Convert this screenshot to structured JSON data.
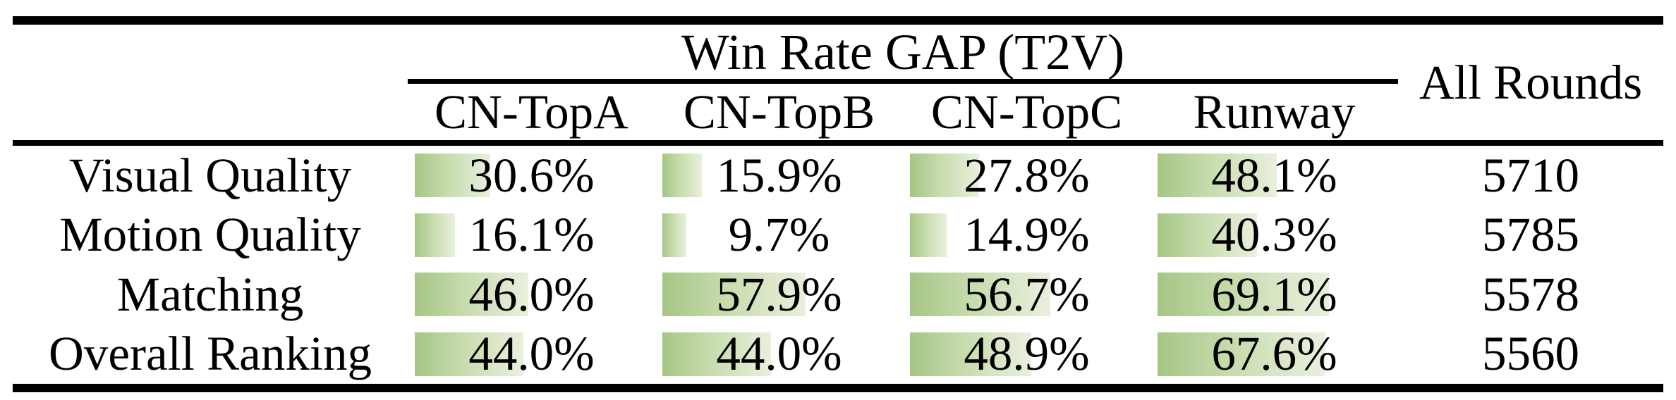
{
  "table": {
    "group_header": "Win Rate GAP (T2V)",
    "all_rounds_header": "All Rounds",
    "columns": [
      "CN-TopA",
      "CN-TopB",
      "CN-TopC",
      "Runway"
    ],
    "rows": [
      {
        "label": "Visual Quality",
        "values": [
          30.6,
          15.9,
          27.8,
          48.1
        ],
        "display": [
          "30.6%",
          "15.9%",
          "27.8%",
          "48.1%"
        ],
        "all_rounds": "5710"
      },
      {
        "label": "Motion Quality",
        "values": [
          16.1,
          9.7,
          14.9,
          40.3
        ],
        "display": [
          "16.1%",
          "9.7%",
          "14.9%",
          "40.3%"
        ],
        "all_rounds": "5785"
      },
      {
        "label": "Matching",
        "values": [
          46.0,
          57.9,
          56.7,
          69.1
        ],
        "display": [
          "46.0%",
          "57.9%",
          "56.7%",
          "69.1%"
        ],
        "all_rounds": "5578"
      },
      {
        "label": "Overall Ranking",
        "values": [
          44.0,
          44.0,
          48.9,
          67.6
        ],
        "display": [
          "44.0%",
          "44.0%",
          "48.9%",
          "67.6%"
        ],
        "all_rounds": "5560"
      }
    ]
  },
  "colors": {
    "bar_gradient_start": "#a5c685",
    "bar_gradient_mid": "#c8dcae",
    "bar_gradient_end": "#e9f0de",
    "rule": "#000000",
    "text": "#000000",
    "background": "#ffffff"
  },
  "chart_data": {
    "type": "table",
    "title": "Win Rate GAP (T2V)",
    "columns": [
      "CN-TopA",
      "CN-TopB",
      "CN-TopC",
      "Runway",
      "All Rounds"
    ],
    "rows": [
      {
        "metric": "Visual Quality",
        "win_rate_gap_pct": {
          "CN-TopA": 30.6,
          "CN-TopB": 15.9,
          "CN-TopC": 27.8,
          "Runway": 48.1
        },
        "all_rounds": 5710
      },
      {
        "metric": "Motion Quality",
        "win_rate_gap_pct": {
          "CN-TopA": 16.1,
          "CN-TopB": 9.7,
          "CN-TopC": 14.9,
          "Runway": 40.3
        },
        "all_rounds": 5785
      },
      {
        "metric": "Matching",
        "win_rate_gap_pct": {
          "CN-TopA": 46.0,
          "CN-TopB": 57.9,
          "CN-TopC": 56.7,
          "Runway": 69.1
        },
        "all_rounds": 5578
      },
      {
        "metric": "Overall Ranking",
        "win_rate_gap_pct": {
          "CN-TopA": 44.0,
          "CN-TopB": 44.0,
          "CN-TopC": 48.9,
          "Runway": 67.6
        },
        "all_rounds": 5560
      }
    ],
    "notes": "Green in-cell data bars have width proportional to the percentage value (0-100% of column width)."
  }
}
